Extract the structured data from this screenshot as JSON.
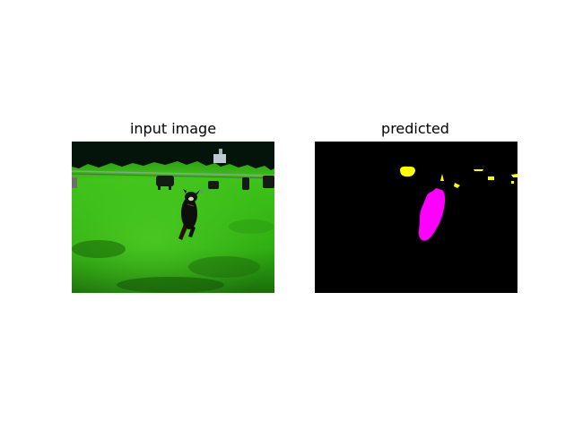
{
  "figure": {
    "background": "#ffffff",
    "panels": [
      {
        "title": "input image",
        "content": "photo of a dark dog running toward the camera on a bright green grass field, dark animals in the background and a dark tree line along the top"
      },
      {
        "title": "predicted",
        "content": "segmentation mask on black background",
        "colors": {
          "background": "#000000",
          "dog_region": "#ff00ff",
          "background_objects": "#ffff00"
        }
      }
    ]
  }
}
